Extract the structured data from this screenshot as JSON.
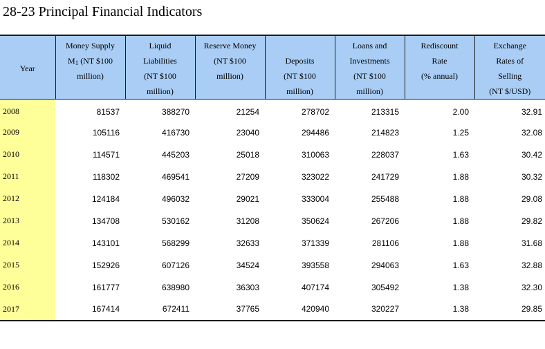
{
  "title": "28-23  Principal Financial Indicators",
  "columns": {
    "year": [
      "Year"
    ],
    "money_supply": [
      "Money Supply",
      "M1 (NT $100",
      "million)"
    ],
    "liquid": [
      "Liquid",
      "Liabilities",
      "(NT $100",
      "million)"
    ],
    "reserve": [
      "Reserve Money",
      "(NT $100",
      "million)"
    ],
    "deposits": [
      "Deposits",
      "(NT $100",
      "million)"
    ],
    "loans": [
      "Loans and",
      "Investments",
      "(NT $100",
      "million)"
    ],
    "rediscount": [
      "Rediscount",
      "Rate",
      "(% annual)"
    ],
    "exchange": [
      "Exchange",
      "Rates of",
      "Selling",
      "(NT $/USD)"
    ]
  },
  "rows": [
    [
      "2008",
      "81537",
      "388270",
      "21254",
      "278702",
      "213315",
      "2.00",
      "32.91"
    ],
    [
      "2009",
      "105116",
      "416730",
      "23040",
      "294486",
      "214823",
      "1.25",
      "32.08"
    ],
    [
      "2010",
      "114571",
      "445203",
      "25018",
      "310063",
      "228037",
      "1.63",
      "30.42"
    ],
    [
      "2011",
      "118302",
      "469541",
      "27209",
      "323022",
      "241729",
      "1.88",
      "30.32"
    ],
    [
      "2012",
      "124184",
      "496032",
      "29021",
      "333004",
      "255488",
      "1.88",
      "29.08"
    ],
    [
      "2013",
      "134708",
      "530162",
      "31208",
      "350624",
      "267206",
      "1.88",
      "29.82"
    ],
    [
      "2014",
      "143101",
      "568299",
      "32633",
      "371339",
      "281106",
      "1.88",
      "31.68"
    ],
    [
      "2015",
      "152926",
      "607126",
      "34524",
      "393558",
      "294063",
      "1.63",
      "32.88"
    ],
    [
      "2016",
      "161777",
      "638980",
      "36303",
      "407174",
      "305492",
      "1.38",
      "32.30"
    ],
    [
      "2017",
      "167414",
      "672411",
      "37765",
      "420940",
      "320227",
      "1.38",
      "29.85"
    ]
  ],
  "colors": {
    "header_bg": "#a9cdf5",
    "year_bg": "#ffff99",
    "rule": "#1b1b1b"
  }
}
